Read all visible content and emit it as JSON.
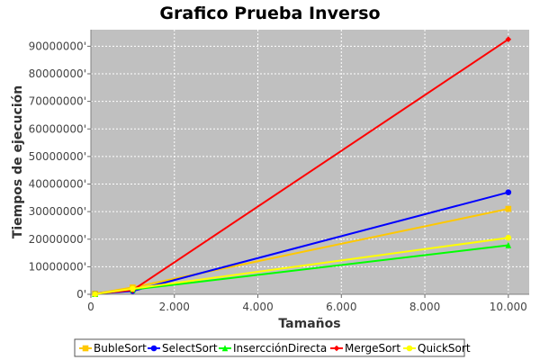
{
  "chart_data": {
    "type": "line",
    "title": "Grafico Prueba Inverso",
    "xlabel": "Tamaños",
    "ylabel": "Tiempos de ejecución",
    "xlim": [
      0,
      10500
    ],
    "ylim": [
      0,
      96000000
    ],
    "x_ticks": [
      {
        "value": 0,
        "label": "0"
      },
      {
        "value": 2000,
        "label": "2.000"
      },
      {
        "value": 4000,
        "label": "4.000"
      },
      {
        "value": 6000,
        "label": "6.000"
      },
      {
        "value": 8000,
        "label": "8.000"
      },
      {
        "value": 10000,
        "label": "10.000"
      }
    ],
    "y_ticks": [
      {
        "value": 0,
        "label": "0'"
      },
      {
        "value": 10000000,
        "label": "10000000'"
      },
      {
        "value": 20000000,
        "label": "20000000'"
      },
      {
        "value": 30000000,
        "label": "30000000'"
      },
      {
        "value": 40000000,
        "label": "40000000'"
      },
      {
        "value": 50000000,
        "label": "50000000'"
      },
      {
        "value": 60000000,
        "label": "60000000'"
      },
      {
        "value": 70000000,
        "label": "70000000'"
      },
      {
        "value": 80000000,
        "label": "80000000'"
      },
      {
        "value": 90000000,
        "label": "90000000'"
      }
    ],
    "grid": true,
    "legend_position": "bottom",
    "plot_background": "#c0c0c0",
    "series": [
      {
        "name": "BubleSort",
        "color": "#ffc800",
        "marker": "square",
        "x": [
          100,
          1000,
          10000
        ],
        "y": [
          200000,
          2500000,
          31000000
        ]
      },
      {
        "name": "SelectSort",
        "color": "#0000ff",
        "marker": "circle",
        "x": [
          100,
          1000,
          10000
        ],
        "y": [
          200000,
          1200000,
          37000000
        ]
      },
      {
        "name": "InsercciónDirecta",
        "color": "#00ff00",
        "marker": "triangle",
        "x": [
          100,
          1000,
          10000
        ],
        "y": [
          100000,
          1700000,
          17800000
        ]
      },
      {
        "name": "MergeSort",
        "color": "#ff0000",
        "marker": "diamond",
        "x": [
          100,
          1000,
          10000
        ],
        "y": [
          200000,
          1500000,
          92500000
        ]
      },
      {
        "name": "QuickSort",
        "color": "#ffff00",
        "marker": "circle",
        "x": [
          100,
          1000,
          10000
        ],
        "y": [
          100000,
          2000000,
          20500000
        ]
      }
    ]
  }
}
